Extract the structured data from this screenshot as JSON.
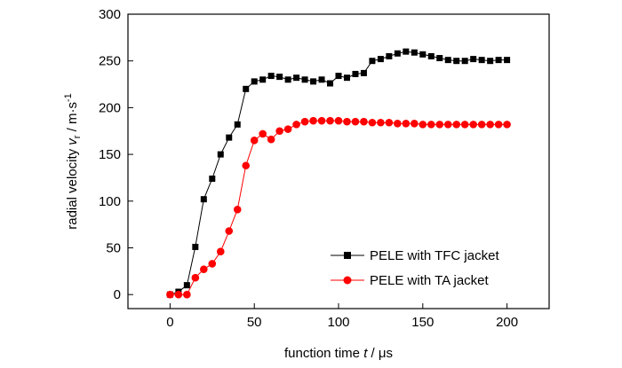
{
  "chart_data": {
    "type": "line",
    "xlabel": {
      "prefix": "function time ",
      "var": "t",
      "suffix": " / μs"
    },
    "ylabel": {
      "prefix": "radial velocity ",
      "var": "v",
      "sub": "r",
      "suffix": " / m·s",
      "sup": "-1"
    },
    "xlim": [
      -25,
      225
    ],
    "ylim": [
      -15,
      300
    ],
    "xticks": [
      0,
      50,
      100,
      150,
      200
    ],
    "yticks": [
      0,
      50,
      100,
      150,
      200,
      250,
      300
    ],
    "grid": false,
    "legend_position": "bottom-right",
    "series": [
      {
        "name": "PELE with TFC jacket",
        "color": "#000000",
        "marker": "square",
        "x": [
          0,
          5,
          10,
          15,
          20,
          25,
          30,
          35,
          40,
          45,
          50,
          55,
          60,
          65,
          70,
          75,
          80,
          85,
          90,
          95,
          100,
          105,
          110,
          115,
          120,
          125,
          130,
          135,
          140,
          145,
          150,
          155,
          160,
          165,
          170,
          175,
          180,
          185,
          190,
          195,
          200
        ],
        "y": [
          0,
          3,
          10,
          51,
          102,
          124,
          150,
          168,
          182,
          220,
          228,
          230,
          234,
          233,
          230,
          232,
          230,
          228,
          230,
          226,
          234,
          232,
          236,
          237,
          250,
          252,
          255,
          258,
          260,
          259,
          257,
          255,
          253,
          251,
          250,
          250,
          252,
          251,
          250,
          251,
          251
        ]
      },
      {
        "name": "PELE with TA jacket",
        "color": "#ff0000",
        "marker": "circle",
        "x": [
          0,
          5,
          10,
          15,
          20,
          25,
          30,
          35,
          40,
          45,
          50,
          55,
          60,
          65,
          70,
          75,
          80,
          85,
          90,
          95,
          100,
          105,
          110,
          115,
          120,
          125,
          130,
          135,
          140,
          145,
          150,
          155,
          160,
          165,
          170,
          175,
          180,
          185,
          190,
          195,
          200
        ],
        "y": [
          0,
          0,
          0,
          18,
          27,
          33,
          46,
          68,
          91,
          138,
          165,
          172,
          166,
          175,
          177,
          182,
          185,
          186,
          186,
          186,
          186,
          185,
          185,
          185,
          184,
          184,
          184,
          183,
          183,
          183,
          182,
          182,
          182,
          182,
          182,
          182,
          182,
          182,
          182,
          182,
          182
        ]
      }
    ]
  }
}
